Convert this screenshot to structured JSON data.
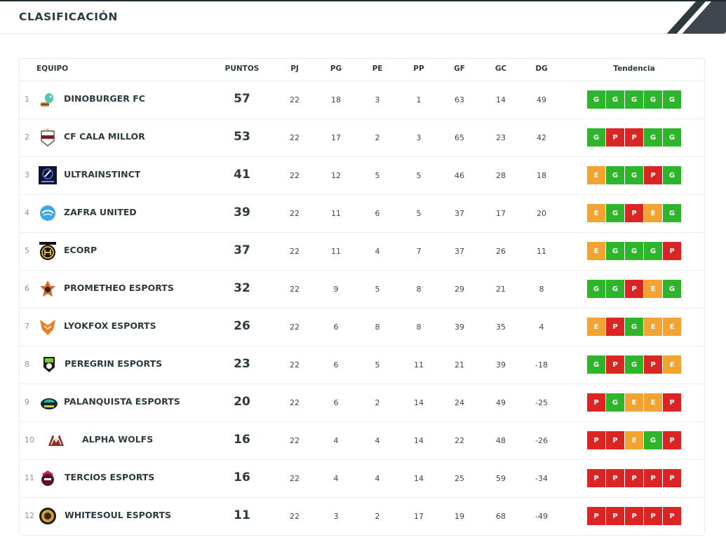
{
  "header": {
    "title": "CLASIFICACIÓN"
  },
  "columns": {
    "team": "EQUIPO",
    "points": "PUNTOS",
    "pj": "PJ",
    "pg": "PG",
    "pe": "PE",
    "pp": "PP",
    "gf": "GF",
    "gc": "GC",
    "dg": "DG",
    "trend": "Tendencia"
  },
  "colors": {
    "win": "#2fb52b",
    "loss": "#db2525",
    "draw": "#f2a330"
  },
  "rows": [
    {
      "pos": "1",
      "name": "DINOBURGER FC",
      "logo": "dino-logo-icon",
      "points": "57",
      "pj": "22",
      "pg": "18",
      "pe": "3",
      "pp": "1",
      "gf": "63",
      "gc": "14",
      "dg": "49",
      "trend": [
        "G",
        "G",
        "G",
        "G",
        "G"
      ]
    },
    {
      "pos": "2",
      "name": "CF CALA MILLOR",
      "logo": "cala-millor-logo-icon",
      "points": "53",
      "pj": "22",
      "pg": "17",
      "pe": "2",
      "pp": "3",
      "gf": "65",
      "gc": "23",
      "dg": "42",
      "trend": [
        "G",
        "P",
        "P",
        "G",
        "G"
      ]
    },
    {
      "pos": "3",
      "name": "ULTRAINSTINCT",
      "logo": "ultrainstinct-logo-icon",
      "points": "41",
      "pj": "22",
      "pg": "12",
      "pe": "5",
      "pp": "5",
      "gf": "46",
      "gc": "28",
      "dg": "18",
      "trend": [
        "E",
        "G",
        "G",
        "P",
        "G"
      ]
    },
    {
      "pos": "4",
      "name": "ZAFRA UNITED",
      "logo": "zafra-logo-icon",
      "points": "39",
      "pj": "22",
      "pg": "11",
      "pe": "6",
      "pp": "5",
      "gf": "37",
      "gc": "17",
      "dg": "20",
      "trend": [
        "E",
        "G",
        "P",
        "E",
        "G"
      ]
    },
    {
      "pos": "5",
      "name": "ECORP",
      "logo": "ecorp-logo-icon",
      "points": "37",
      "pj": "22",
      "pg": "11",
      "pe": "4",
      "pp": "7",
      "gf": "37",
      "gc": "26",
      "dg": "11",
      "trend": [
        "E",
        "G",
        "G",
        "G",
        "P"
      ]
    },
    {
      "pos": "6",
      "name": "PROMETHEO ESPORTS",
      "logo": "prometheo-logo-icon",
      "points": "32",
      "pj": "22",
      "pg": "9",
      "pe": "5",
      "pp": "8",
      "gf": "29",
      "gc": "21",
      "dg": "8",
      "trend": [
        "G",
        "G",
        "P",
        "E",
        "G"
      ]
    },
    {
      "pos": "7",
      "name": "LYOKFOX ESPORTS",
      "logo": "lyokfox-logo-icon",
      "points": "26",
      "pj": "22",
      "pg": "6",
      "pe": "8",
      "pp": "8",
      "gf": "39",
      "gc": "35",
      "dg": "4",
      "trend": [
        "E",
        "P",
        "G",
        "E",
        "E"
      ]
    },
    {
      "pos": "8",
      "name": "PEREGRIN ESPORTS",
      "logo": "peregrin-logo-icon",
      "points": "23",
      "pj": "22",
      "pg": "6",
      "pe": "5",
      "pp": "11",
      "gf": "21",
      "gc": "39",
      "dg": "-18",
      "trend": [
        "G",
        "P",
        "G",
        "P",
        "E"
      ]
    },
    {
      "pos": "9",
      "name": "PALANQUISTA ESPORTS",
      "logo": "palanquista-logo-icon",
      "points": "20",
      "pj": "22",
      "pg": "6",
      "pe": "2",
      "pp": "14",
      "gf": "24",
      "gc": "49",
      "dg": "-25",
      "trend": [
        "P",
        "G",
        "E",
        "E",
        "P"
      ]
    },
    {
      "pos": "10",
      "name": "ALPHA WOLFS",
      "logo": "alpha-wolfs-logo-icon",
      "points": "16",
      "pj": "22",
      "pg": "4",
      "pe": "4",
      "pp": "14",
      "gf": "22",
      "gc": "48",
      "dg": "-26",
      "trend": [
        "P",
        "P",
        "E",
        "G",
        "P"
      ]
    },
    {
      "pos": "11",
      "name": "TERCIOS ESPORTS",
      "logo": "tercios-logo-icon",
      "points": "16",
      "pj": "22",
      "pg": "4",
      "pe": "4",
      "pp": "14",
      "gf": "25",
      "gc": "59",
      "dg": "-34",
      "trend": [
        "P",
        "P",
        "P",
        "P",
        "P"
      ]
    },
    {
      "pos": "12",
      "name": "WHITESOUL ESPORTS",
      "logo": "whitesoul-logo-icon",
      "points": "11",
      "pj": "22",
      "pg": "3",
      "pe": "2",
      "pp": "17",
      "gf": "19",
      "gc": "68",
      "dg": "-49",
      "trend": [
        "P",
        "P",
        "P",
        "P",
        "P"
      ]
    }
  ]
}
